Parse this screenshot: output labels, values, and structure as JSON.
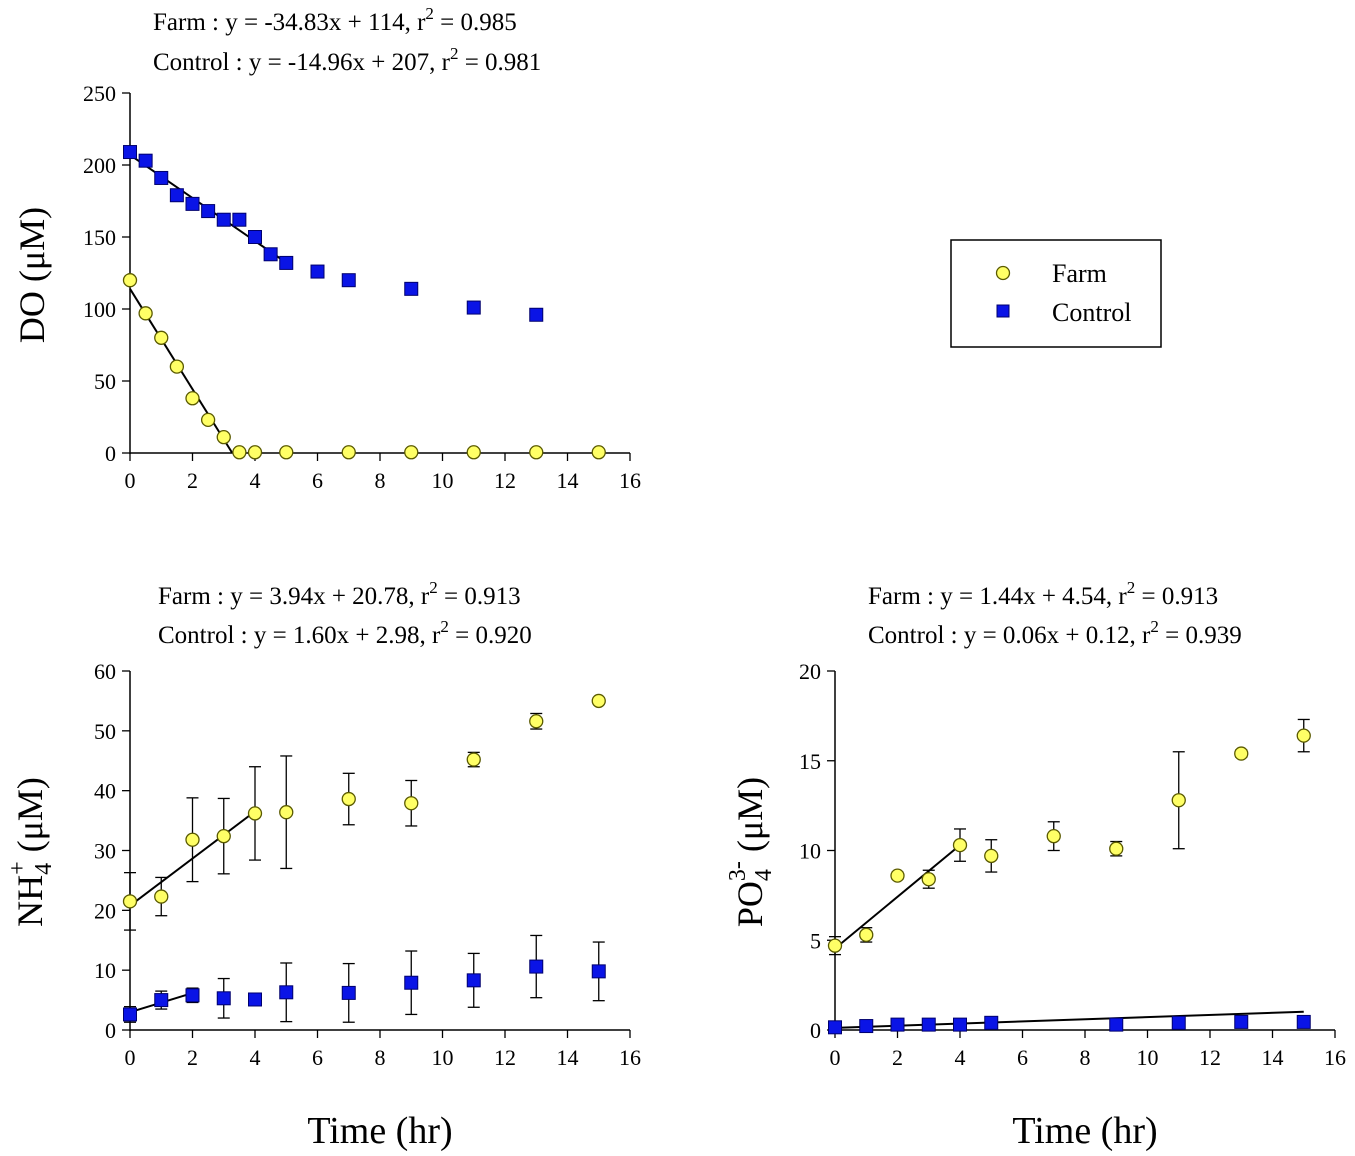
{
  "colors": {
    "farm_fill": "#ffff66",
    "farm_stroke": "#5a5a00",
    "control_fill": "#0a14e6",
    "control_stroke": "#00006e",
    "axis": "#000000"
  },
  "legend": {
    "position": "right of top panel",
    "entries": [
      {
        "label": "Farm",
        "marker": "circle-icon"
      },
      {
        "label": "Control",
        "marker": "square-icon"
      }
    ]
  },
  "chart_data": [
    {
      "type": "scatter",
      "title": [
        "Farm : y = -34.83x + 114, r² = 0.985",
        "Control : y = -14.96x + 207, r² = 0.981"
      ],
      "title_parts": [
        {
          "pre": "Farm : y = -34.83x + 114, r",
          "sup": "2",
          "post": " = 0.985"
        },
        {
          "pre": "Control : y = -14.96x + 207, r",
          "sup": "2",
          "post": " = 0.981"
        }
      ],
      "ylabel": "DO (μM)",
      "ylabel_parts": {
        "main": "DO (μM)",
        "sub": "",
        "sup": "",
        "unit": ""
      },
      "xlabel": "",
      "xlim": [
        0,
        16
      ],
      "ylim": [
        0,
        250
      ],
      "xticks": [
        0,
        2,
        4,
        6,
        8,
        10,
        12,
        14,
        16
      ],
      "yticks": [
        0,
        50,
        100,
        150,
        200,
        250
      ],
      "series": [
        {
          "name": "Farm",
          "x": [
            0,
            0.5,
            1,
            1.5,
            2,
            2.5,
            3,
            3.5,
            4,
            5,
            7,
            9,
            11,
            13,
            15
          ],
          "y": [
            120,
            97,
            80,
            60,
            38,
            23,
            11,
            0.5,
            0.5,
            0.5,
            0.5,
            0.5,
            0.5,
            0.5,
            0.5
          ],
          "fit": {
            "slope": -34.83,
            "intercept": 114,
            "x_range": [
              0,
              3.27
            ]
          }
        },
        {
          "name": "Control",
          "x": [
            0,
            0.5,
            1,
            1.5,
            2,
            2.5,
            3,
            3.5,
            4,
            4.5,
            5,
            6,
            7,
            9,
            11,
            13
          ],
          "y": [
            209,
            203,
            191,
            179,
            173,
            168,
            162,
            162,
            150,
            138,
            132,
            126,
            120,
            114,
            101,
            96
          ],
          "fit": {
            "slope": -14.96,
            "intercept": 207,
            "x_range": [
              0,
              5
            ]
          }
        }
      ]
    },
    {
      "type": "scatter",
      "title": [
        "Farm : y = 3.94x + 20.78, r² = 0.913",
        "Control : y = 1.60x + 2.98, r² = 0.920"
      ],
      "title_parts": [
        {
          "pre": "Farm : y = 3.94x + 20.78, r",
          "sup": "2",
          "post": " = 0.913"
        },
        {
          "pre": "Control : y = 1.60x + 2.98, r",
          "sup": "2",
          "post": " = 0.920"
        }
      ],
      "ylabel": "NH4+ (μM)",
      "ylabel_parts": {
        "main": "NH",
        "sub": "4",
        "sup": "+",
        "unit": " (μM)"
      },
      "xlabel": "Time (hr)",
      "xlim": [
        0,
        16
      ],
      "ylim": [
        0,
        60
      ],
      "xticks": [
        0,
        2,
        4,
        6,
        8,
        10,
        12,
        14,
        16
      ],
      "yticks": [
        0,
        10,
        20,
        30,
        40,
        50,
        60
      ],
      "series": [
        {
          "name": "Farm",
          "x": [
            0,
            1,
            2,
            3,
            4,
            5,
            7,
            9,
            11,
            13,
            15
          ],
          "y": [
            21.5,
            22.3,
            31.8,
            32.4,
            36.2,
            36.4,
            38.6,
            37.9,
            45.2,
            51.6,
            55.0
          ],
          "err": [
            4.8,
            3.2,
            7.0,
            6.3,
            7.8,
            9.4,
            4.3,
            3.8,
            1.2,
            1.3,
            0.5
          ],
          "fit": {
            "slope": 3.94,
            "intercept": 20.78,
            "x_range": [
              0,
              4
            ]
          }
        },
        {
          "name": "Control",
          "x": [
            0,
            1,
            2,
            3,
            4,
            5,
            7,
            9,
            11,
            13,
            15
          ],
          "y": [
            2.6,
            5.0,
            5.8,
            5.3,
            5.1,
            6.3,
            6.2,
            7.9,
            8.3,
            10.6,
            9.8
          ],
          "err": [
            1.3,
            1.5,
            1.2,
            3.3,
            0.3,
            4.9,
            4.9,
            5.3,
            4.5,
            5.2,
            4.9
          ],
          "fit": {
            "slope": 1.6,
            "intercept": 2.98,
            "x_range": [
              0,
              2
            ]
          }
        }
      ]
    },
    {
      "type": "scatter",
      "title": [
        "Farm : y = 1.44x + 4.54, r² = 0.913",
        "Control : y = 0.06x + 0.12, r² = 0.939"
      ],
      "title_parts": [
        {
          "pre": "Farm : y = 1.44x + 4.54, r",
          "sup": "2",
          "post": " = 0.913"
        },
        {
          "pre": "Control : y = 0.06x + 0.12, r",
          "sup": "2",
          "post": " = 0.939"
        }
      ],
      "ylabel": "PO43- (μM)",
      "ylabel_parts": {
        "main": "PO",
        "sub": "4",
        "sup": "3-",
        "unit": " (μM)"
      },
      "xlabel": "Time (hr)",
      "xlim": [
        0,
        16
      ],
      "ylim": [
        0,
        20
      ],
      "xticks": [
        0,
        2,
        4,
        6,
        8,
        10,
        12,
        14,
        16
      ],
      "yticks": [
        0,
        5,
        10,
        15,
        20
      ],
      "series": [
        {
          "name": "Farm",
          "x": [
            0,
            1,
            2,
            3,
            4,
            5,
            7,
            9,
            11,
            13,
            15
          ],
          "y": [
            4.7,
            5.3,
            8.6,
            8.4,
            10.3,
            9.7,
            10.8,
            10.1,
            12.8,
            15.4,
            16.4
          ],
          "err": [
            0.5,
            0.4,
            0.2,
            0.5,
            0.9,
            0.9,
            0.8,
            0.4,
            2.7,
            0.2,
            0.9
          ],
          "fit": {
            "slope": 1.44,
            "intercept": 4.54,
            "x_range": [
              0,
              4
            ]
          }
        },
        {
          "name": "Control",
          "x": [
            0,
            1,
            2,
            3,
            4,
            5,
            9,
            11,
            13,
            15
          ],
          "y": [
            0.15,
            0.22,
            0.3,
            0.3,
            0.3,
            0.4,
            0.3,
            0.4,
            0.45,
            0.45
          ],
          "err": [
            0.05,
            0.05,
            0.2,
            0.1,
            0.05,
            0.2,
            0.2,
            0.2,
            0.1,
            0.1
          ],
          "fit": {
            "slope": 0.06,
            "intercept": 0.12,
            "x_range": [
              0,
              15
            ]
          }
        }
      ]
    }
  ]
}
